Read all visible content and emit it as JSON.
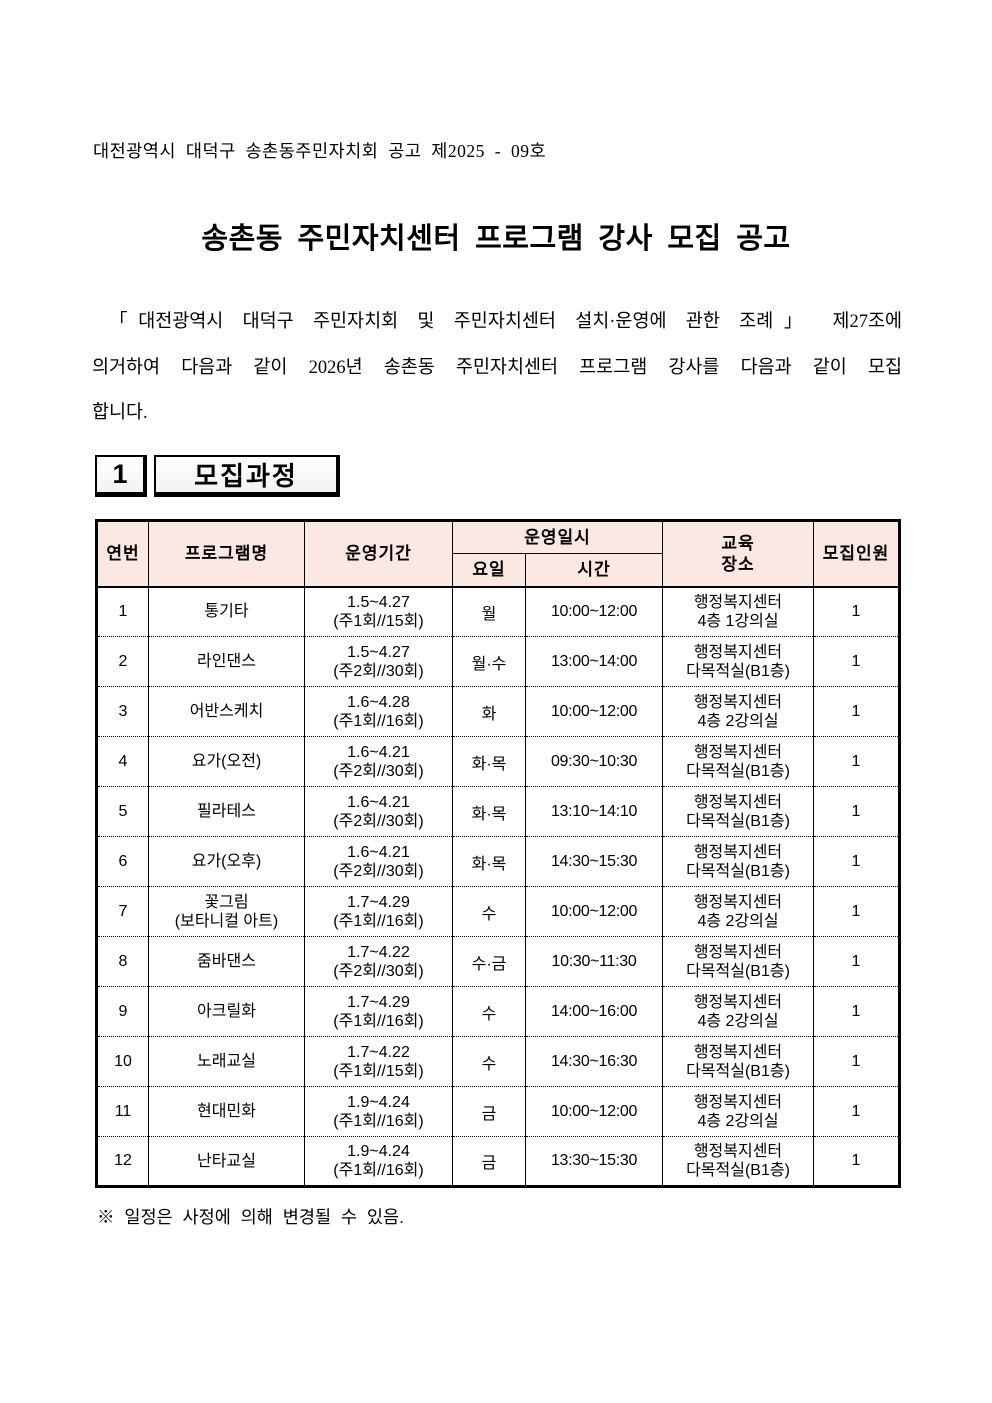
{
  "notice": {
    "number_line": "대전광역시 대덕구 송촌동주민자치회 공고 제2025 - 09호",
    "title": "송촌동 주민자치센터 프로그램 강사 모집 공고",
    "body_lines": [
      "「대전광역시 대덕구 주민자치회 및 주민자치센터 설치·운영에 관한 조례」 제27조에",
      "의거하여 다음과 같이 2026년 송촌동 주민자치센터 프로그램 강사를 다음과 같이 모집",
      "합니다."
    ],
    "footnote": "※ 일정은 사정에 의해 변경될 수 있음."
  },
  "section": {
    "number": "1",
    "title": "모집과정"
  },
  "table": {
    "headers": {
      "no": "연번",
      "program": "프로그램명",
      "period": "운영기간",
      "schedule": "운영일시",
      "day": "요일",
      "time": "시간",
      "place_line1": "교육",
      "place_line2": "장소",
      "count": "모집인원"
    },
    "rows": [
      {
        "no": "1",
        "program": [
          "통기타"
        ],
        "period": [
          "1.5~4.27",
          "(주1회//15회)"
        ],
        "day": "월",
        "time": "10:00~12:00",
        "place": [
          "행정복지센터",
          "4층 1강의실"
        ],
        "count": "1"
      },
      {
        "no": "2",
        "program": [
          "라인댄스"
        ],
        "period": [
          "1.5~4.27",
          "(주2회//30회)"
        ],
        "day": "월·수",
        "time": "13:00~14:00",
        "place": [
          "행정복지센터",
          "다목적실(B1층)"
        ],
        "count": "1"
      },
      {
        "no": "3",
        "program": [
          "어반스케치"
        ],
        "period": [
          "1.6~4.28",
          "(주1회//16회)"
        ],
        "day": "화",
        "time": "10:00~12:00",
        "place": [
          "행정복지센터",
          "4층 2강의실"
        ],
        "count": "1"
      },
      {
        "no": "4",
        "program": [
          "요가(오전)"
        ],
        "period": [
          "1.6~4.21",
          "(주2회//30회)"
        ],
        "day": "화·목",
        "time": "09:30~10:30",
        "place": [
          "행정복지센터",
          "다목적실(B1층)"
        ],
        "count": "1"
      },
      {
        "no": "5",
        "program": [
          "필라테스"
        ],
        "period": [
          "1.6~4.21",
          "(주2회//30회)"
        ],
        "day": "화·목",
        "time": "13:10~14:10",
        "place": [
          "행정복지센터",
          "다목적실(B1층)"
        ],
        "count": "1"
      },
      {
        "no": "6",
        "program": [
          "요가(오후)"
        ],
        "period": [
          "1.6~4.21",
          "(주2회//30회)"
        ],
        "day": "화·목",
        "time": "14:30~15:30",
        "place": [
          "행정복지센터",
          "다목적실(B1층)"
        ],
        "count": "1"
      },
      {
        "no": "7",
        "program": [
          "꽃그림",
          "(보타니컬 아트)"
        ],
        "period": [
          "1.7~4.29",
          "(주1회//16회)"
        ],
        "day": "수",
        "time": "10:00~12:00",
        "place": [
          "행정복지센터",
          "4층 2강의실"
        ],
        "count": "1"
      },
      {
        "no": "8",
        "program": [
          "줌바댄스"
        ],
        "period": [
          "1.7~4.22",
          "(주2회//30회)"
        ],
        "day": "수·금",
        "time": "10:30~11:30",
        "place": [
          "행정복지센터",
          "다목적실(B1층)"
        ],
        "count": "1"
      },
      {
        "no": "9",
        "program": [
          "아크릴화"
        ],
        "period": [
          "1.7~4.29",
          "(주1회//16회)"
        ],
        "day": "수",
        "time": "14:00~16:00",
        "place": [
          "행정복지센터",
          "4층 2강의실"
        ],
        "count": "1"
      },
      {
        "no": "10",
        "program": [
          "노래교실"
        ],
        "period": [
          "1.7~4.22",
          "(주1회//15회)"
        ],
        "day": "수",
        "time": "14:30~16:30",
        "place": [
          "행정복지센터",
          "다목적실(B1층)"
        ],
        "count": "1"
      },
      {
        "no": "11",
        "program": [
          "현대민화"
        ],
        "period": [
          "1.9~4.24",
          "(주1회//16회)"
        ],
        "day": "금",
        "time": "10:00~12:00",
        "place": [
          "행정복지센터",
          "4층 2강의실"
        ],
        "count": "1"
      },
      {
        "no": "12",
        "program": [
          "난타교실"
        ],
        "period": [
          "1.9~4.24",
          "(주1회//16회)"
        ],
        "day": "금",
        "time": "13:30~15:30",
        "place": [
          "행정복지센터",
          "다목적실(B1층)"
        ],
        "count": "1"
      }
    ]
  },
  "colors": {
    "table_header_bg": "#fbe8e3",
    "text": "#000000",
    "page_bg": "#ffffff"
  }
}
